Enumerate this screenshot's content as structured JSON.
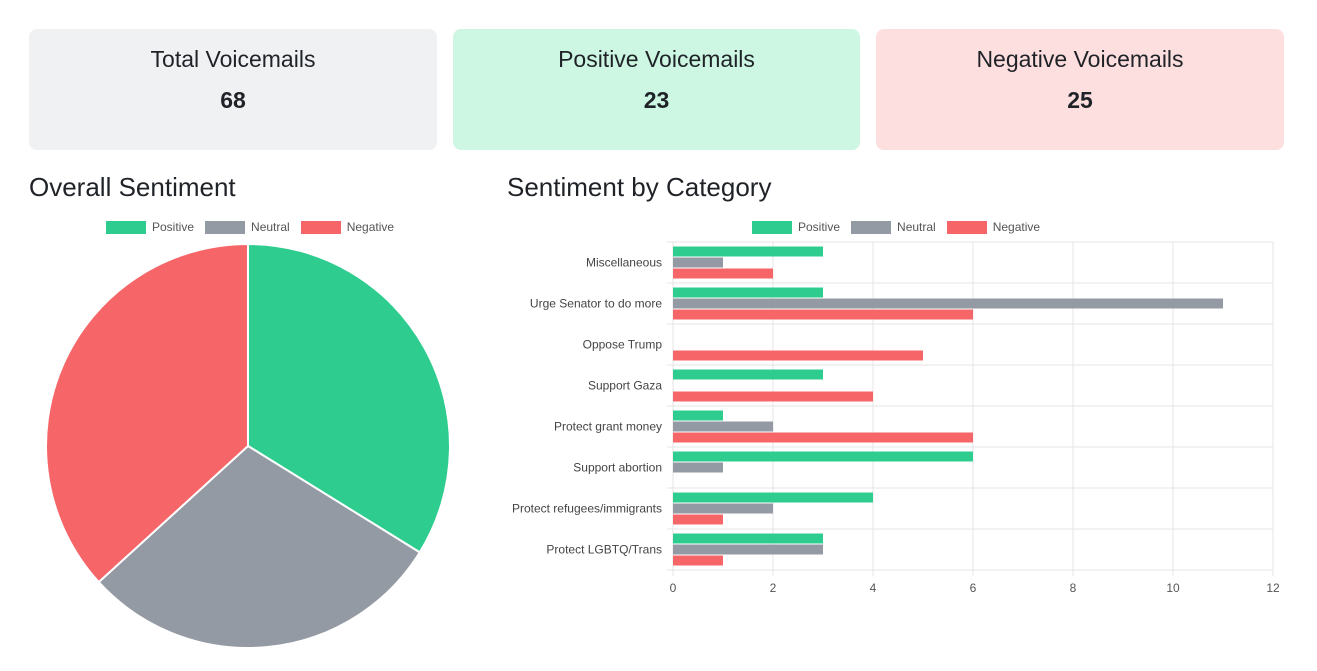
{
  "colors": {
    "positive": "#2ecc8f",
    "neutral": "#949aa3",
    "negative": "#f66668",
    "card_total_bg": "#f0f1f3",
    "card_positive_bg": "#cdf7e2",
    "card_negative_bg": "#fedfe0"
  },
  "cards": [
    {
      "title": "Total Voicemails",
      "value": "68"
    },
    {
      "title": "Positive Voicemails",
      "value": "23"
    },
    {
      "title": "Negative Voicemails",
      "value": "25"
    }
  ],
  "pie_section": {
    "title": "Overall Sentiment"
  },
  "bar_section": {
    "title": "Sentiment by Category"
  },
  "chart_data": [
    {
      "type": "pie",
      "title": "Overall Sentiment",
      "legend": "top",
      "labels": [
        "Positive",
        "Neutral",
        "Negative"
      ],
      "values": [
        23,
        20,
        25
      ]
    },
    {
      "type": "bar",
      "orientation": "horizontal",
      "title": "Sentiment by Category",
      "legend": "top",
      "categories": [
        "Miscellaneous",
        "Urge Senator to do more",
        "Oppose Trump",
        "Support Gaza",
        "Protect grant money",
        "Support abortion",
        "Protect refugees/immigrants",
        "Protect LGBTQ/Trans"
      ],
      "series": [
        {
          "name": "Positive",
          "values": [
            3,
            3,
            0,
            3,
            1,
            6,
            4,
            3
          ]
        },
        {
          "name": "Neutral",
          "values": [
            1,
            11,
            0,
            0,
            2,
            1,
            2,
            3
          ]
        },
        {
          "name": "Negative",
          "values": [
            2,
            6,
            5,
            4,
            6,
            0,
            1,
            1
          ]
        }
      ],
      "xlim": [
        0,
        12
      ],
      "xticks": [
        "0",
        "2",
        "4",
        "6",
        "8",
        "10",
        "12"
      ],
      "grid": true
    }
  ]
}
